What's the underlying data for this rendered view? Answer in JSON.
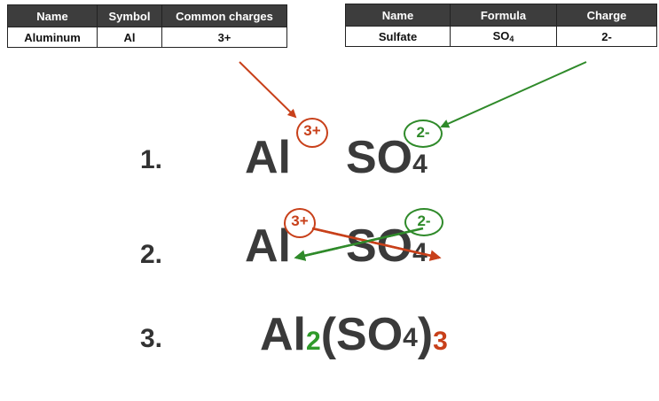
{
  "left_table": {
    "headers": [
      "Name",
      "Symbol",
      "Common charges"
    ],
    "row": [
      "Aluminum",
      "Al",
      "3+"
    ]
  },
  "right_table": {
    "headers": [
      "Name",
      "Formula",
      "Charge"
    ],
    "row_name": "Sulfate",
    "row_formula_main": "SO",
    "row_formula_sub": "4",
    "row_charge": "2-"
  },
  "steps": [
    {
      "number": "1.",
      "cation": "Al",
      "cation_charge": "3+",
      "anion": "SO",
      "anion_sub": "4",
      "anion_charge": "2-"
    },
    {
      "number": "2.",
      "cation": "Al",
      "cation_charge": "3+",
      "anion": "SO",
      "anion_sub": "4",
      "anion_charge": "2-"
    },
    {
      "number": "3.",
      "cation": "Al",
      "cation_sub": "2",
      "open_paren": "(",
      "anion": "SO",
      "anion_sub": "4",
      "close_paren": ")",
      "group_sub": "3"
    }
  ],
  "colors": {
    "cation_arrow": "#c8401a",
    "anion_arrow": "#2f8a2a",
    "formula_text": "#3a3a3a"
  }
}
